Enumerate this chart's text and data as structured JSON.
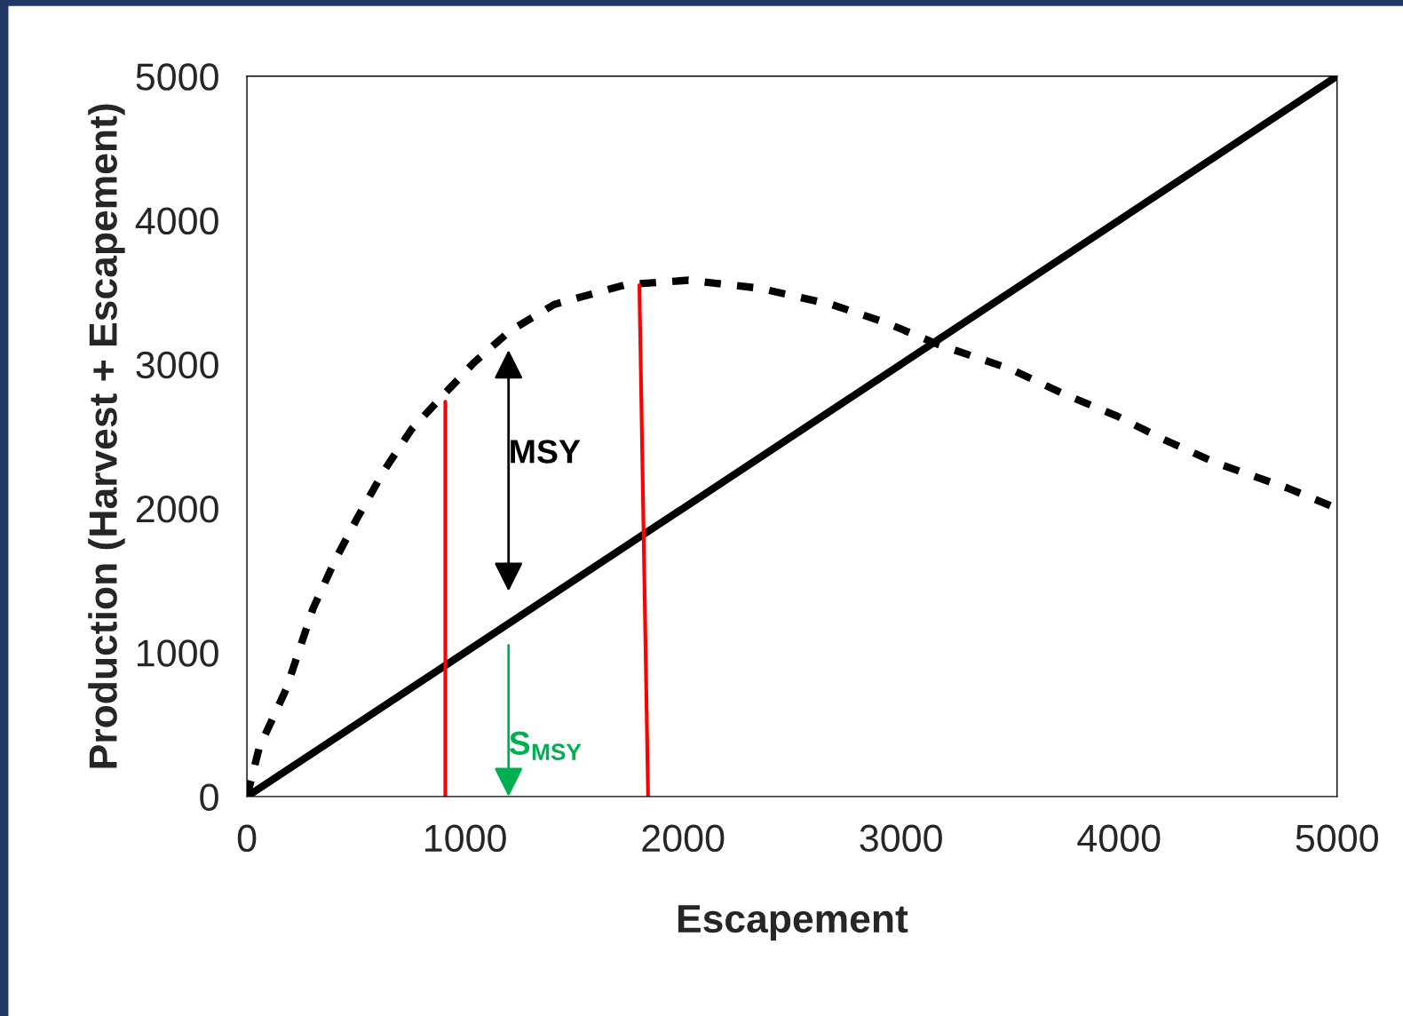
{
  "chart_data": {
    "type": "line",
    "xlabel": "Escapement",
    "ylabel": "Production (Harvest + Escapement)",
    "xlim": [
      0,
      5000
    ],
    "ylim": [
      0,
      5000
    ],
    "xticks": [
      0,
      1000,
      2000,
      3000,
      4000,
      5000
    ],
    "yticks": [
      0,
      1000,
      2000,
      3000,
      4000,
      5000
    ],
    "grid": false,
    "series": [
      {
        "color": "#000000",
        "line_style": "dashed",
        "x": [
          0,
          57,
          180,
          303,
          406,
          508,
          631,
          754,
          906,
          1041,
          1205,
          1410,
          1738,
          2025,
          2352,
          2680,
          2926,
          3172,
          3500,
          3746,
          3992,
          4197,
          4443,
          4770,
          5000
        ],
        "values": [
          0,
          342,
          745,
          1304,
          1646,
          1938,
          2267,
          2547,
          2795,
          3012,
          3230,
          3416,
          3553,
          3584,
          3528,
          3416,
          3292,
          3137,
          2969,
          2795,
          2640,
          2484,
          2317,
          2143,
          2000
        ]
      },
      {
        "color": "#000000",
        "line_style": "solid",
        "x": [
          0,
          5000
        ],
        "values": [
          0,
          5000
        ]
      },
      {
        "color": "#ff0000",
        "line_style": "solid",
        "x": [
          910,
          910
        ],
        "values": [
          0,
          2740
        ]
      },
      {
        "color": "#ff0000",
        "line_style": "solid",
        "x": [
          1840,
          1800
        ],
        "values": [
          0,
          3550
        ]
      }
    ],
    "annotations": [
      "MSY",
      "S$_{MSY}$"
    ]
  }
}
